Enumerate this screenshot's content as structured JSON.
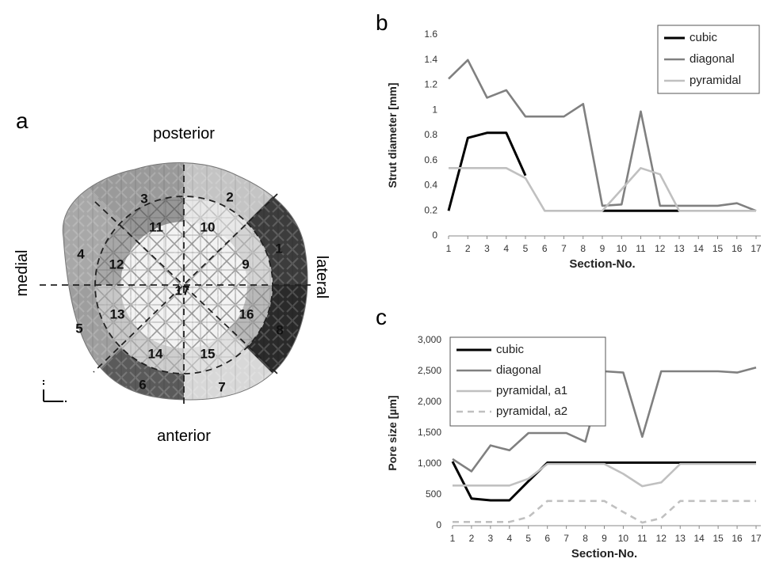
{
  "panel_a": {
    "letter": "a",
    "orientation": {
      "posterior": "posterior",
      "anterior": "anterior",
      "medial": "medial",
      "lateral": "lateral"
    },
    "sections": [
      {
        "label": "1",
        "color": "#3c3c3c"
      },
      {
        "label": "2",
        "color": "#c4c4c4"
      },
      {
        "label": "3",
        "color": "#9a9a9a"
      },
      {
        "label": "4",
        "color": "#a8a8a8"
      },
      {
        "label": "5",
        "color": "#9e9e9e"
      },
      {
        "label": "6",
        "color": "#5a5a5a"
      },
      {
        "label": "7",
        "color": "#d8d8d8"
      },
      {
        "label": "8",
        "color": "#2a2a2a"
      },
      {
        "label": "9",
        "color": "#bcbcbc"
      },
      {
        "label": "10",
        "color": "#dedede"
      },
      {
        "label": "11",
        "color": "#4a4a4a"
      },
      {
        "label": "12",
        "color": "#6a6a6a"
      },
      {
        "label": "13",
        "color": "#a4a4a4"
      },
      {
        "label": "14",
        "color": "#b0b0b0"
      },
      {
        "label": "15",
        "color": "#d2d2d2"
      },
      {
        "label": "16",
        "color": "#8a8a8a"
      },
      {
        "label": "17",
        "color": "#ececec"
      }
    ]
  },
  "chart_data": [
    {
      "panel": "b",
      "type": "line",
      "xlabel": "Section-No.",
      "ylabel": "Strut diameter [mm]",
      "x": [
        1,
        2,
        3,
        4,
        5,
        6,
        7,
        8,
        9,
        10,
        11,
        12,
        13,
        14,
        15,
        16,
        17
      ],
      "ylim": [
        0,
        1.6
      ],
      "yticks": [
        "0",
        "0.2",
        "0.4",
        "0.6",
        "0.8",
        "1",
        "1.2",
        "1.4",
        "1.6"
      ],
      "ytick_values": [
        0,
        0.2,
        0.4,
        0.6,
        0.8,
        1.0,
        1.2,
        1.4,
        1.6
      ],
      "grid": false,
      "legend": "top-right",
      "series": [
        {
          "name": "cubic",
          "color": "#000000",
          "dash": "",
          "values": [
            0.2,
            0.78,
            0.82,
            0.82,
            0.48,
            null,
            null,
            null,
            0.2,
            0.2,
            0.2,
            0.2,
            0.2,
            null,
            null,
            null,
            null
          ]
        },
        {
          "name": "diagonal",
          "color": "#808080",
          "dash": "",
          "values": [
            1.25,
            1.4,
            1.1,
            1.16,
            0.95,
            0.95,
            0.95,
            1.05,
            0.24,
            0.25,
            0.99,
            0.24,
            0.24,
            0.24,
            0.24,
            0.26,
            0.2
          ]
        },
        {
          "name": "pyramidal",
          "color": "#c0c0c0",
          "dash": "",
          "values": [
            0.54,
            0.54,
            0.54,
            0.54,
            0.46,
            0.2,
            0.2,
            0.2,
            0.2,
            0.37,
            0.54,
            0.49,
            0.2,
            0.2,
            0.2,
            0.2,
            0.2
          ]
        }
      ]
    },
    {
      "panel": "c",
      "type": "line",
      "xlabel": "Section-No.",
      "ylabel": "Pore size [µm]",
      "x": [
        1,
        2,
        3,
        4,
        5,
        6,
        7,
        8,
        9,
        10,
        11,
        12,
        13,
        14,
        15,
        16,
        17
      ],
      "ylim": [
        0,
        3000
      ],
      "yticks": [
        "0",
        "500",
        "1,000",
        "1,500",
        "2,000",
        "2,500",
        "3,000"
      ],
      "ytick_values": [
        0,
        500,
        1000,
        1500,
        2000,
        2500,
        3000
      ],
      "grid": false,
      "legend": "top-left",
      "series": [
        {
          "name": "cubic",
          "color": "#000000",
          "dash": "",
          "values": [
            1040,
            440,
            410,
            410,
            720,
            1020,
            1020,
            1020,
            1020,
            1020,
            1020,
            1020,
            1020,
            1020,
            1020,
            1020,
            1020
          ]
        },
        {
          "name": "diagonal",
          "color": "#808080",
          "dash": "",
          "values": [
            1080,
            880,
            1300,
            1220,
            1500,
            1500,
            1500,
            1360,
            2500,
            2480,
            1440,
            2500,
            2500,
            2500,
            2500,
            2480,
            2560
          ]
        },
        {
          "name": "pyramidal, a1",
          "color": "#c0c0c0",
          "dash": "",
          "values": [
            650,
            650,
            650,
            650,
            760,
            1000,
            1000,
            1000,
            1000,
            840,
            640,
            700,
            1000,
            1000,
            1000,
            1000,
            1000
          ]
        },
        {
          "name": "pyramidal, a2",
          "color": "#c0c0c0",
          "dash": "8,6",
          "values": [
            60,
            60,
            60,
            60,
            140,
            400,
            400,
            400,
            400,
            220,
            50,
            120,
            400,
            400,
            400,
            400,
            400
          ]
        }
      ]
    }
  ]
}
